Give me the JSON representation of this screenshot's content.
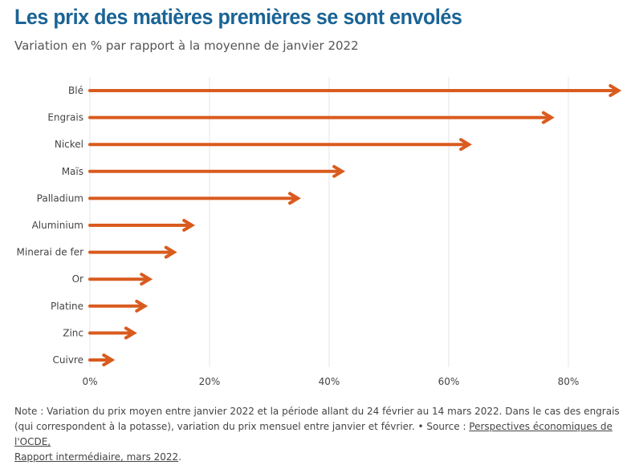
{
  "title": "Les prix des matières premières se sont envolés",
  "subtitle": "Variation en % par rapport à la moyenne de janvier 2022",
  "chart_data": {
    "type": "bar",
    "orientation": "horizontal",
    "mark": "arrow",
    "categories": [
      "Blé",
      "Engrais",
      "Nickel",
      "Maïs",
      "Palladium",
      "Aluminium",
      "Minerai de fer",
      "Or",
      "Platine",
      "Zinc",
      "Cuivre"
    ],
    "values": [
      88.5,
      77.3,
      63.5,
      42.3,
      34.9,
      17.2,
      14.2,
      10.1,
      9.3,
      7.5,
      3.8
    ],
    "xlim": [
      0,
      88.5
    ],
    "xticks": [
      0,
      20,
      40,
      60,
      80
    ],
    "xtick_labels": [
      "0%",
      "20%",
      "40%",
      "60%",
      "80%"
    ],
    "grid": "vertical",
    "color": "#d95b1e"
  },
  "note": {
    "text": "Note : Variation du prix moyen entre janvier 2022 et la période allant du 24 février au 14 mars 2022. Dans le cas des engrais (qui correspondent à la potasse), variation du prix mensuel entre janvier et février. • Source : ",
    "link1": "Perspectives économiques de l'OCDE,",
    "link2": "Rapport intermédiaire, mars 2022",
    "end": "."
  }
}
